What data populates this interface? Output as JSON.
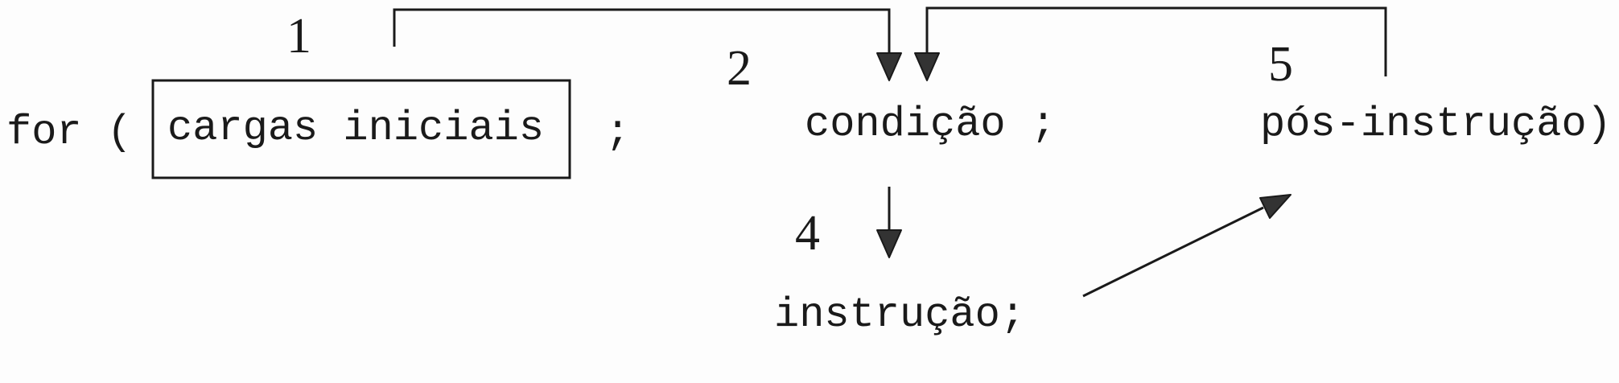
{
  "code": {
    "for_open": "for (",
    "init": "cargas iniciais",
    "semi1": ";",
    "condition": "condição ;",
    "post": "pós-instrução)",
    "body": "instrução;"
  },
  "steps": {
    "init": "1",
    "condition": "2",
    "body": "4",
    "post": "5"
  },
  "colors": {
    "ink": "#1a1a1a",
    "arrowhead": "#333333",
    "paper": "#fdfdfd"
  }
}
